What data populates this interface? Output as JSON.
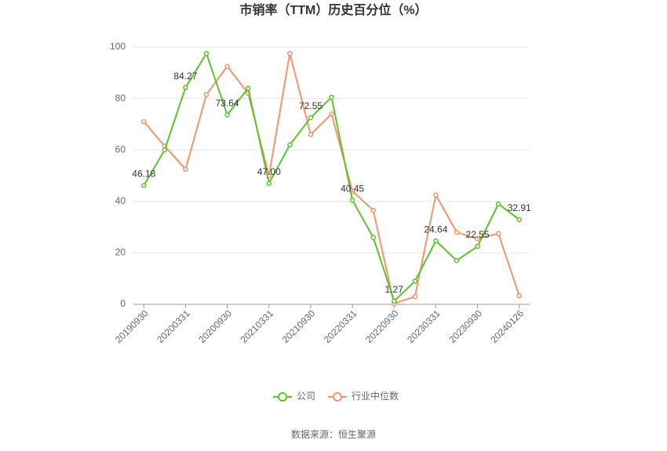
{
  "chart_data": {
    "type": "line",
    "title": "市销率（TTM）历史百分位（%）",
    "categories": [
      "20190930",
      null,
      "20200331",
      null,
      "20200930",
      null,
      "20210331",
      null,
      "20210930",
      null,
      "20220331",
      null,
      "20220930",
      null,
      "20230331",
      null,
      "20230930",
      null,
      "20240126"
    ],
    "series": [
      {
        "name": "公司",
        "color": "#5bc42c",
        "values": [
          46.18,
          60,
          84.27,
          97.5,
          73.64,
          84,
          47.0,
          62,
          72.55,
          80.5,
          40.45,
          26,
          1.27,
          9,
          24.64,
          17,
          22.55,
          39,
          32.91
        ],
        "value_labels": [
          "46.18",
          null,
          "84.27",
          null,
          "73.64",
          null,
          "47.00",
          null,
          "72.55",
          null,
          "40.45",
          null,
          "1.27",
          null,
          "24.64",
          null,
          "22.55",
          null,
          "32.91"
        ]
      },
      {
        "name": "行业中位数",
        "color": "#f5936b",
        "values": [
          71,
          61.5,
          52.5,
          81.5,
          92.5,
          82,
          50,
          97.5,
          66,
          74,
          44,
          36.5,
          0.3,
          3,
          42.5,
          28,
          25.5,
          27.5,
          3.3
        ]
      }
    ],
    "ylim": [
      0,
      100
    ],
    "yticks": [
      0,
      20,
      40,
      60,
      80,
      100
    ],
    "grid": true,
    "legend": "bottom",
    "source": "数据来源：恒生聚源"
  }
}
